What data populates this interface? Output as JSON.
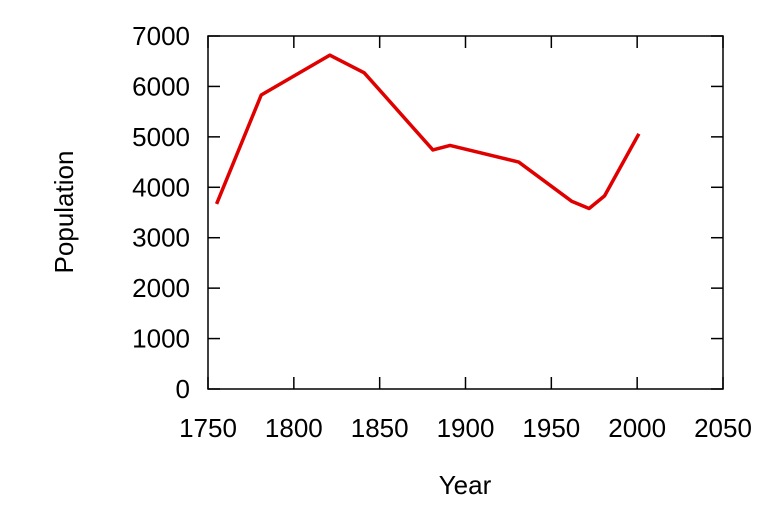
{
  "chart_data": {
    "type": "line",
    "title": "",
    "xlabel": "Year",
    "ylabel": "Population",
    "xlim": [
      1750,
      2050
    ],
    "ylim": [
      0,
      7000
    ],
    "xticks": [
      1750,
      1800,
      1850,
      1900,
      1950,
      2000,
      2050
    ],
    "yticks": [
      0,
      1000,
      2000,
      3000,
      4000,
      5000,
      6000,
      7000
    ],
    "grid": false,
    "line_color": "#e00000",
    "series": [
      {
        "x": [
          1755,
          1781,
          1821,
          1841,
          1881,
          1891,
          1931,
          1962,
          1972,
          1981,
          2001
        ],
        "values": [
          3670,
          5830,
          6620,
          6270,
          4740,
          4830,
          4500,
          3720,
          3580,
          3830,
          5060
        ]
      }
    ]
  }
}
